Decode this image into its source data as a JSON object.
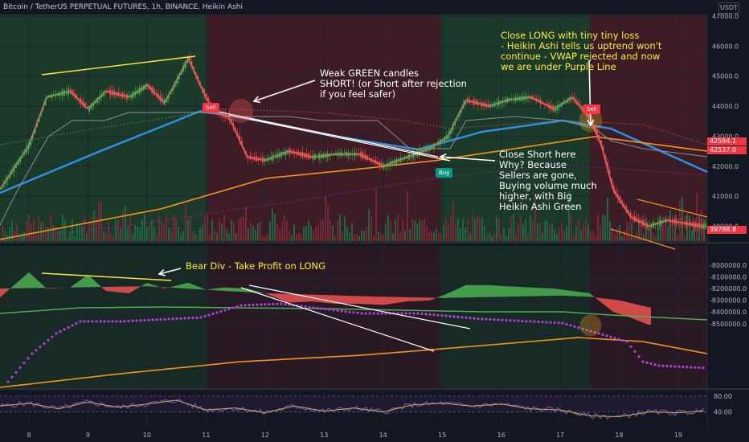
{
  "header": {
    "title": "Bitcoin / TetherUS PERPETUAL FUTURES, 1h, BINANCE, Heikin Ashi",
    "currency": "USDT"
  },
  "annotations": {
    "weak_green": "Weak GREEN candles\nSHORT! (or Short after rejection\nif you feel safer)",
    "close_short": "Close Short here\nWhy? Because\nSellers are gone,\nBuying volume much\nhigher, with Big\nHeikin Ashi Green",
    "close_long": "Close LONG with tiny tiny loss\n- Heikin Ashi tells us uptrend won't\ncontinue - VWAP rejected and now\nwe are under Purple Line",
    "bear_div": "Bear Div - Take Profit on LONG"
  },
  "signals": {
    "sell1": "Sell",
    "buy": "Buy",
    "sell2": "Sell"
  },
  "price_badges": {
    "b1": "42594.1",
    "b2": "42537.0",
    "b3": "39788.8"
  },
  "colors": {
    "background": "#131722",
    "bull": "#4caf50",
    "bear": "#ef5350",
    "green_zone": "#1e4a30",
    "red_zone": "#4a1e27",
    "vwap_blue": "#2e8fe0",
    "orange": "#f7931a",
    "purple": "#9c27b0",
    "yellow_line": "#ffeb3b"
  },
  "chart_data": [
    {
      "type": "line",
      "title": "Bitcoin / TetherUS PERPETUAL FUTURES, 1h, BINANCE, Heikin Ashi",
      "ylim": [
        39500,
        47500
      ],
      "yticks": [
        "47000.0",
        "46000.0",
        "45000.0",
        "44000.0",
        "43000.0",
        "42000.0",
        "41000.0",
        "40000.0"
      ],
      "x_ticks": [
        "8",
        "9",
        "10",
        "11",
        "12",
        "13",
        "14",
        "15",
        "16",
        "17",
        "18",
        "19"
      ],
      "x": [
        7.5,
        8.0,
        8.3,
        8.7,
        9.0,
        9.3,
        9.7,
        10.0,
        10.3,
        10.7,
        10.9,
        11.1,
        11.4,
        11.7,
        12.0,
        12.4,
        12.8,
        13.2,
        13.6,
        14.0,
        14.4,
        14.8,
        15.1,
        15.4,
        15.8,
        16.1,
        16.5,
        16.9,
        17.2,
        17.5,
        17.7,
        17.9,
        18.2,
        18.5,
        18.8,
        19.1,
        19.4
      ],
      "series": [
        {
          "name": "",
          "values": [
            41200,
            42700,
            44300,
            44500,
            43900,
            44500,
            44300,
            44700,
            44100,
            45600,
            44700,
            43900,
            43600,
            42300,
            42200,
            42500,
            42300,
            42400,
            42400,
            42000,
            42300,
            42600,
            43000,
            44200,
            44000,
            44200,
            44300,
            43900,
            44300,
            43600,
            42700,
            41200,
            40300,
            40000,
            40200,
            40100,
            40000
          ]
        }
      ]
    },
    {
      "type": "line",
      "title": "",
      "ylim": [
        -8560000,
        -7980000
      ],
      "yticks": [
        "-8000000.0",
        "-8100000.0",
        "-8200000.0",
        "-8300000.0",
        "-8400000.0",
        "-8500000.0"
      ],
      "x": [
        7.5,
        8.0,
        8.3,
        8.7,
        9.0,
        9.3,
        9.7,
        10.0,
        10.3,
        10.7,
        11.0,
        11.3,
        11.7,
        12.0,
        12.4,
        12.8,
        13.2,
        13.6,
        14.0,
        14.4,
        14.8,
        15.1,
        15.4,
        15.8,
        16.1,
        16.5,
        16.9,
        17.2,
        17.5,
        17.7,
        17.9,
        18.2,
        18.5
      ],
      "series": [
        {
          "name": "",
          "values": [
            -8280000,
            -8060000,
            -8200000,
            -8190000,
            -8080000,
            -8220000,
            -8240000,
            -8150000,
            -8200000,
            -8150000,
            -8210000,
            -8190000,
            -8200000,
            -8240000,
            -8320000,
            -8310000,
            -8330000,
            -8330000,
            -8340000,
            -8310000,
            -8300000,
            -8240000,
            -8170000,
            -8170000,
            -8180000,
            -8190000,
            -8200000,
            -8220000,
            -8240000,
            -8320000,
            -8400000,
            -8450000,
            -8510000
          ]
        }
      ]
    },
    {
      "type": "line",
      "title": "",
      "ylim": [
        20,
        100
      ],
      "yticks": [
        "80.00",
        "40.00"
      ],
      "x": [
        7.5,
        8.0,
        8.5,
        9.0,
        9.5,
        10.0,
        10.5,
        11.0,
        11.5,
        12.0,
        12.5,
        13.0,
        13.5,
        14.0,
        14.5,
        15.0,
        15.5,
        16.0,
        16.5,
        17.0,
        17.5,
        18.0,
        18.5,
        19.0,
        19.4
      ],
      "series": [
        {
          "name": "",
          "values": [
            55,
            62,
            48,
            65,
            52,
            60,
            70,
            45,
            50,
            38,
            55,
            42,
            50,
            40,
            58,
            62,
            55,
            60,
            48,
            45,
            30,
            28,
            40,
            38,
            42
          ]
        }
      ]
    }
  ]
}
